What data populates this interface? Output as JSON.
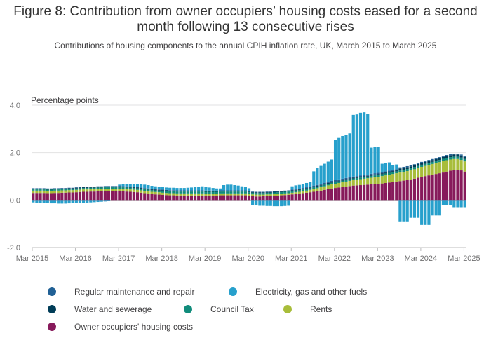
{
  "title": "Figure 8: Contribution from owner occupiers’ housing costs eased for a second month following 13 consecutive rises",
  "subtitle": "Contributions of housing components to the annual CPIH inflation rate, UK, March 2015 to March 2025",
  "chart_data": {
    "type": "bar",
    "stacked": true,
    "ylabel": "Percentage points",
    "ylim": [
      -2.0,
      4.0
    ],
    "yticks": [
      "4.0",
      "2.0",
      "0.0",
      "-2.0"
    ],
    "ytick_values": [
      4,
      2,
      0,
      -2
    ],
    "xtick_labels": [
      "Mar 2015",
      "Mar 2016",
      "Mar 2017",
      "Mar 2018",
      "Mar 2019",
      "Mar 2020",
      "Mar 2021",
      "Mar 2022",
      "Mar 2023",
      "Mar 2024",
      "Mar 2025"
    ],
    "grid": true,
    "legend_position": "bottom",
    "categories_note": "monthly, Mar 2015 to Mar 2025",
    "series": [
      {
        "name": "Regular maintenance and repair",
        "color": "#206095",
        "values": [
          0.02,
          0.02,
          0.02,
          0.02,
          0.02,
          0.02,
          0.02,
          0.02,
          0.02,
          0.02,
          0.02,
          0.02,
          0.02,
          0.02,
          0.02,
          0.02,
          0.02,
          0.02,
          0.02,
          0.02,
          0.02,
          0.02,
          0.02,
          0.02,
          0.02,
          0.02,
          0.02,
          0.02,
          0.02,
          0.02,
          0.02,
          0.02,
          0.02,
          0.02,
          0.02,
          0.02,
          0.02,
          0.02,
          0.02,
          0.02,
          0.02,
          0.02,
          0.02,
          0.02,
          0.02,
          0.02,
          0.02,
          0.02,
          0.02,
          0.02,
          0.02,
          0.02,
          0.02,
          0.02,
          0.02,
          0.02,
          0.02,
          0.02,
          0.02,
          0.02,
          0.02,
          0.02,
          0.02,
          0.02,
          0.02,
          0.02,
          0.02,
          0.02,
          0.02,
          0.02,
          0.02,
          0.02,
          0.03,
          0.03,
          0.03,
          0.03,
          0.04,
          0.04,
          0.04,
          0.04,
          0.05,
          0.05,
          0.05,
          0.05,
          0.05,
          0.05,
          0.05,
          0.05,
          0.05,
          0.05,
          0.05,
          0.05,
          0.05,
          0.05,
          0.05,
          0.05,
          0.05,
          0.05,
          0.05,
          0.05,
          0.05,
          0.05,
          0.05,
          0.04,
          0.04,
          0.04,
          0.04,
          0.04,
          0.04,
          0.04,
          0.04,
          0.04,
          0.04,
          0.04,
          0.04,
          0.04,
          0.04,
          0.04,
          0.04,
          0.04,
          0.04
        ]
      },
      {
        "name": "Electricity, gas and other fuels",
        "color": "#27a0cc",
        "values": [
          -0.1,
          -0.11,
          -0.12,
          -0.12,
          -0.13,
          -0.14,
          -0.14,
          -0.15,
          -0.15,
          -0.15,
          -0.14,
          -0.13,
          -0.13,
          -0.12,
          -0.12,
          -0.11,
          -0.1,
          -0.09,
          -0.08,
          -0.07,
          -0.06,
          -0.04,
          0.0,
          0.0,
          0.05,
          0.07,
          0.09,
          0.1,
          0.12,
          0.13,
          0.13,
          0.14,
          0.14,
          0.13,
          0.12,
          0.12,
          0.11,
          0.1,
          0.1,
          0.1,
          0.1,
          0.1,
          0.1,
          0.11,
          0.12,
          0.14,
          0.15,
          0.17,
          0.15,
          0.13,
          0.11,
          0.09,
          0.08,
          0.22,
          0.24,
          0.24,
          0.22,
          0.2,
          0.17,
          0.15,
          0.12,
          -0.2,
          -0.22,
          -0.24,
          -0.24,
          -0.25,
          -0.25,
          -0.26,
          -0.26,
          -0.26,
          -0.25,
          -0.24,
          0.14,
          0.16,
          0.16,
          0.17,
          0.18,
          0.2,
          0.6,
          0.7,
          0.75,
          0.8,
          0.85,
          0.9,
          1.7,
          1.75,
          1.8,
          1.8,
          1.85,
          2.6,
          2.6,
          2.65,
          2.65,
          2.55,
          1.1,
          1.1,
          1.1,
          0.35,
          0.35,
          0.35,
          0.2,
          0.2,
          -0.9,
          -0.9,
          -0.9,
          -0.75,
          -0.75,
          -0.75,
          -1.05,
          -1.05,
          -1.05,
          -0.65,
          -0.65,
          -0.65,
          -0.2,
          -0.2,
          -0.2,
          -0.3,
          -0.3,
          -0.3,
          -0.3
        ]
      },
      {
        "name": "Water and sewerage",
        "color": "#003c57",
        "values": [
          0.03,
          0.03,
          0.03,
          0.03,
          0.03,
          0.03,
          0.03,
          0.03,
          0.03,
          0.03,
          0.03,
          0.03,
          0.03,
          0.03,
          0.03,
          0.03,
          0.03,
          0.03,
          0.03,
          0.03,
          0.03,
          0.03,
          0.03,
          0.03,
          0.03,
          0.03,
          0.03,
          0.03,
          0.03,
          0.03,
          0.03,
          0.03,
          0.03,
          0.03,
          0.03,
          0.03,
          0.03,
          0.03,
          0.03,
          0.03,
          0.03,
          0.03,
          0.03,
          0.03,
          0.03,
          0.03,
          0.03,
          0.03,
          0.03,
          0.03,
          0.03,
          0.03,
          0.03,
          0.03,
          0.03,
          0.03,
          0.03,
          0.03,
          0.03,
          0.03,
          0.03,
          0.03,
          0.03,
          0.03,
          0.03,
          0.03,
          0.03,
          0.03,
          0.03,
          0.03,
          0.03,
          0.03,
          0.03,
          0.03,
          0.03,
          0.03,
          0.03,
          0.03,
          0.03,
          0.03,
          0.03,
          0.03,
          0.03,
          0.03,
          0.03,
          0.03,
          0.03,
          0.03,
          0.03,
          0.03,
          0.03,
          0.03,
          0.03,
          0.03,
          0.04,
          0.04,
          0.04,
          0.04,
          0.04,
          0.04,
          0.04,
          0.04,
          0.08,
          0.08,
          0.08,
          0.08,
          0.08,
          0.08,
          0.08,
          0.08,
          0.08,
          0.08,
          0.08,
          0.08,
          0.08,
          0.08,
          0.08,
          0.09,
          0.09,
          0.09,
          0.09
        ]
      },
      {
        "name": "Council Tax",
        "color": "#118c7b",
        "values": [
          0.05,
          0.05,
          0.05,
          0.05,
          0.05,
          0.05,
          0.05,
          0.05,
          0.05,
          0.05,
          0.05,
          0.05,
          0.06,
          0.06,
          0.06,
          0.06,
          0.06,
          0.06,
          0.06,
          0.06,
          0.06,
          0.06,
          0.06,
          0.06,
          0.07,
          0.07,
          0.07,
          0.07,
          0.07,
          0.07,
          0.07,
          0.07,
          0.07,
          0.07,
          0.07,
          0.07,
          0.08,
          0.08,
          0.08,
          0.08,
          0.08,
          0.08,
          0.08,
          0.08,
          0.08,
          0.08,
          0.08,
          0.08,
          0.08,
          0.08,
          0.08,
          0.08,
          0.08,
          0.08,
          0.08,
          0.08,
          0.08,
          0.08,
          0.08,
          0.08,
          0.07,
          0.07,
          0.07,
          0.07,
          0.07,
          0.07,
          0.07,
          0.07,
          0.07,
          0.07,
          0.07,
          0.07,
          0.07,
          0.07,
          0.07,
          0.07,
          0.07,
          0.07,
          0.07,
          0.07,
          0.07,
          0.07,
          0.07,
          0.07,
          0.07,
          0.07,
          0.07,
          0.07,
          0.07,
          0.07,
          0.07,
          0.07,
          0.07,
          0.07,
          0.08,
          0.08,
          0.08,
          0.08,
          0.08,
          0.08,
          0.08,
          0.08,
          0.09,
          0.09,
          0.09,
          0.09,
          0.09,
          0.09,
          0.09,
          0.09,
          0.09,
          0.09,
          0.09,
          0.09,
          0.1,
          0.1,
          0.1,
          0.1,
          0.1,
          0.1,
          0.1
        ]
      },
      {
        "name": "Rents",
        "color": "#a8bd3a",
        "values": [
          0.1,
          0.1,
          0.1,
          0.1,
          0.1,
          0.1,
          0.1,
          0.1,
          0.1,
          0.1,
          0.1,
          0.1,
          0.1,
          0.1,
          0.1,
          0.1,
          0.1,
          0.1,
          0.1,
          0.1,
          0.1,
          0.1,
          0.1,
          0.1,
          0.1,
          0.1,
          0.1,
          0.1,
          0.1,
          0.1,
          0.1,
          0.1,
          0.1,
          0.1,
          0.1,
          0.1,
          0.09,
          0.09,
          0.09,
          0.09,
          0.09,
          0.09,
          0.09,
          0.09,
          0.09,
          0.09,
          0.09,
          0.09,
          0.08,
          0.08,
          0.08,
          0.08,
          0.08,
          0.08,
          0.08,
          0.08,
          0.08,
          0.08,
          0.08,
          0.08,
          0.08,
          0.08,
          0.08,
          0.08,
          0.07,
          0.07,
          0.07,
          0.07,
          0.07,
          0.07,
          0.07,
          0.07,
          0.07,
          0.08,
          0.08,
          0.09,
          0.09,
          0.1,
          0.12,
          0.13,
          0.14,
          0.15,
          0.16,
          0.17,
          0.18,
          0.19,
          0.2,
          0.21,
          0.22,
          0.23,
          0.24,
          0.25,
          0.26,
          0.27,
          0.28,
          0.29,
          0.3,
          0.31,
          0.32,
          0.33,
          0.34,
          0.35,
          0.36,
          0.37,
          0.38,
          0.39,
          0.4,
          0.41,
          0.42,
          0.43,
          0.44,
          0.45,
          0.46,
          0.47,
          0.48,
          0.48,
          0.47,
          0.46,
          0.45,
          0.44,
          0.43
        ]
      },
      {
        "name": "Owner occupiers' housing costs",
        "color": "#871a5b",
        "values": [
          0.3,
          0.3,
          0.3,
          0.3,
          0.29,
          0.29,
          0.3,
          0.3,
          0.31,
          0.31,
          0.32,
          0.32,
          0.33,
          0.34,
          0.35,
          0.35,
          0.36,
          0.36,
          0.37,
          0.37,
          0.38,
          0.38,
          0.38,
          0.38,
          0.38,
          0.37,
          0.36,
          0.35,
          0.34,
          0.33,
          0.31,
          0.29,
          0.27,
          0.25,
          0.24,
          0.23,
          0.22,
          0.21,
          0.2,
          0.2,
          0.19,
          0.19,
          0.19,
          0.19,
          0.19,
          0.19,
          0.19,
          0.19,
          0.19,
          0.19,
          0.19,
          0.19,
          0.2,
          0.2,
          0.2,
          0.2,
          0.2,
          0.2,
          0.2,
          0.2,
          0.18,
          0.16,
          0.15,
          0.15,
          0.16,
          0.17,
          0.17,
          0.18,
          0.19,
          0.2,
          0.21,
          0.22,
          0.24,
          0.25,
          0.27,
          0.29,
          0.31,
          0.33,
          0.35,
          0.37,
          0.4,
          0.43,
          0.46,
          0.49,
          0.51,
          0.53,
          0.55,
          0.57,
          0.59,
          0.61,
          0.62,
          0.63,
          0.64,
          0.65,
          0.66,
          0.67,
          0.68,
          0.7,
          0.72,
          0.74,
          0.76,
          0.78,
          0.8,
          0.82,
          0.84,
          0.86,
          0.9,
          0.94,
          0.98,
          1.01,
          1.04,
          1.07,
          1.1,
          1.13,
          1.16,
          1.2,
          1.24,
          1.27,
          1.28,
          1.25,
          1.2
        ]
      }
    ]
  }
}
